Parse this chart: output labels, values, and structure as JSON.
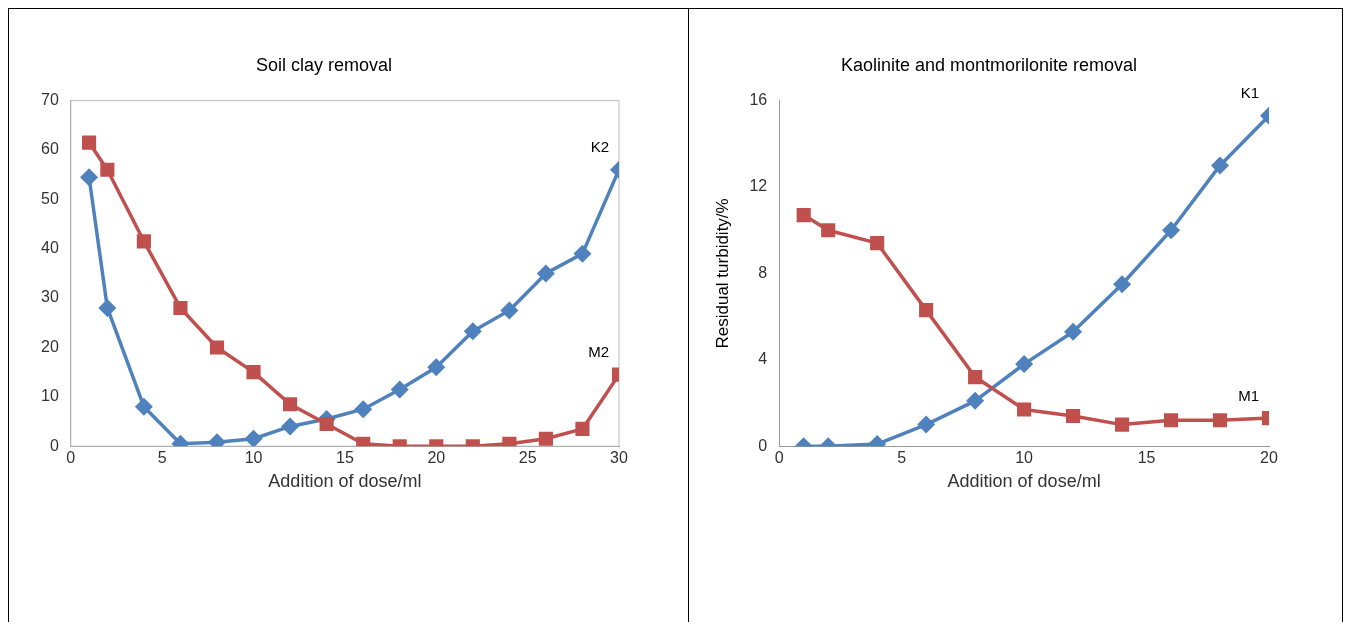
{
  "chart_data": [
    {
      "type": "line",
      "title": "Soil clay removal",
      "xlabel": "Addition of dose/ml",
      "xlim": [
        0,
        30
      ],
      "xticks": [
        0,
        5,
        10,
        15,
        20,
        25,
        30
      ],
      "ylim": [
        0,
        70
      ],
      "yticks": [
        0,
        10,
        20,
        30,
        40,
        50,
        60,
        70
      ],
      "grid": false,
      "legend": false,
      "series": [
        {
          "name": "K2",
          "color": "#4f81bd",
          "marker": "diamond",
          "x": [
            1,
            2,
            4,
            6,
            8,
            10,
            12,
            14,
            16,
            18,
            20,
            22,
            24,
            26,
            28,
            30
          ],
          "values": [
            54.5,
            28,
            8,
            0.5,
            0.8,
            1.5,
            4,
            5.5,
            7.5,
            11.5,
            16,
            23.3,
            27.5,
            35,
            39,
            56
          ]
        },
        {
          "name": "M2",
          "color": "#c0504d",
          "marker": "square",
          "x": [
            1,
            2,
            4,
            6,
            8,
            10,
            12,
            14,
            16,
            18,
            20,
            22,
            24,
            26,
            28,
            30
          ],
          "values": [
            61.5,
            56,
            41.5,
            28,
            20,
            15,
            8.5,
            4.5,
            0.5,
            0,
            0,
            0,
            0.5,
            1.5,
            3.5,
            14.5
          ]
        }
      ]
    },
    {
      "type": "line",
      "title": "Kaolinite and montmorilonite removal",
      "xlabel": "Addition of dose/ml",
      "ylabel": "Residual turbidity/%",
      "xlim": [
        0,
        20
      ],
      "xticks": [
        0,
        5,
        10,
        15,
        20
      ],
      "ylim": [
        0,
        16
      ],
      "yticks": [
        0,
        4,
        8,
        12,
        16
      ],
      "grid": false,
      "legend": false,
      "series": [
        {
          "name": "K1",
          "color": "#4f81bd",
          "marker": "diamond",
          "x": [
            1,
            2,
            4,
            6,
            8,
            10,
            12,
            14,
            16,
            18,
            20
          ],
          "values": [
            0,
            0,
            0.1,
            1,
            2.1,
            3.8,
            5.3,
            7.5,
            10,
            13,
            15.3
          ]
        },
        {
          "name": "M1",
          "color": "#c0504d",
          "marker": "square",
          "x": [
            1,
            2,
            4,
            6,
            8,
            10,
            12,
            14,
            16,
            18,
            20
          ],
          "values": [
            10.7,
            10,
            9.4,
            6.3,
            3.2,
            1.7,
            1.4,
            1.0,
            1.2,
            1.2,
            1.3
          ]
        }
      ]
    }
  ]
}
